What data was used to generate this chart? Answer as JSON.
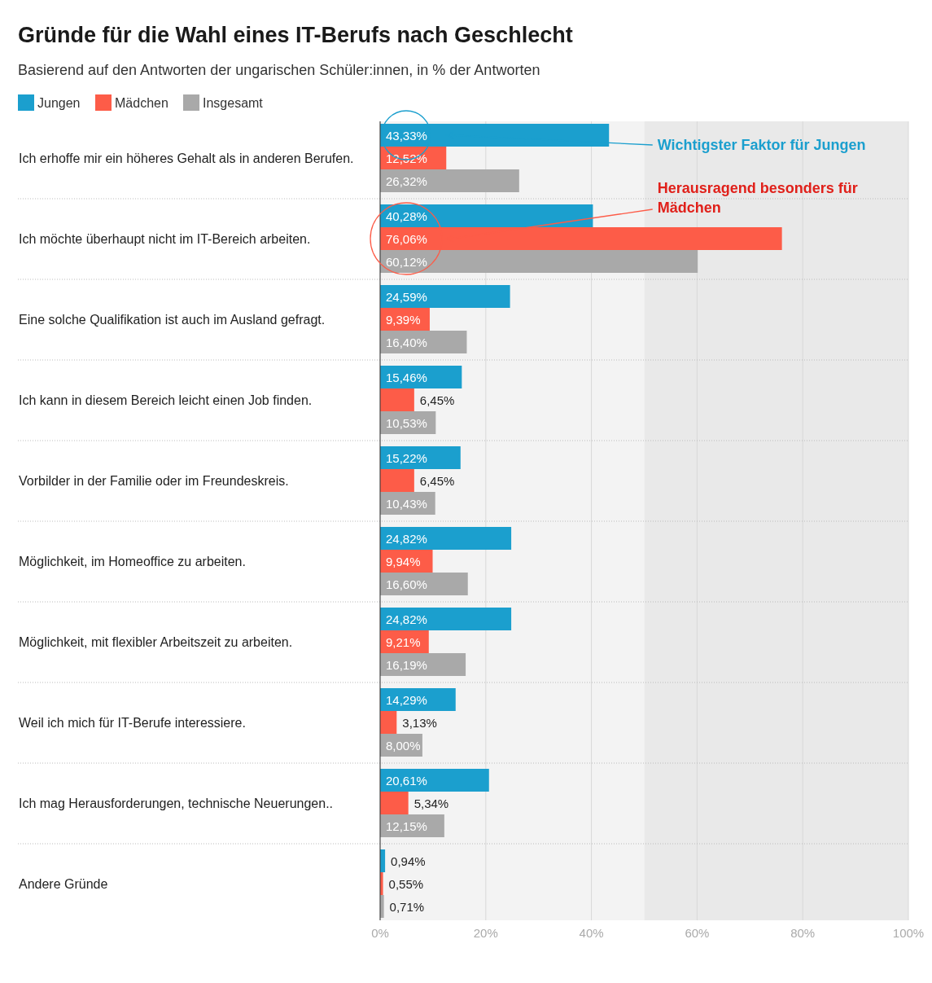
{
  "chart_data": {
    "type": "bar",
    "orientation": "horizontal",
    "title": "Gründe für die Wahl eines IT-Berufs nach Geschlecht",
    "subtitle": "Basierend auf den Antworten der ungarischen Schüler:innen, in % der Antworten",
    "categories": [
      "Ich erhoffe mir ein höheres Gehalt als in anderen Berufen.",
      "Ich möchte überhaupt nicht im IT-Bereich arbeiten.",
      "Eine solche Qualifikation ist auch im Ausland gefragt.",
      "Ich kann in diesem Bereich leicht einen Job finden.",
      " Vorbilder in der Familie oder im Freundeskreis.",
      "Möglichkeit, im Homeoffice zu arbeiten.",
      "Möglichkeit, mit flexibler Arbeitszeit zu arbeiten.",
      "Weil ich mich für IT-Berufe interessiere.",
      "Ich mag Herausforderungen, technische Neuerungen..",
      "Andere Gründe"
    ],
    "series": [
      {
        "name": "Jungen",
        "color": "#1b9fce",
        "values": [
          43.33,
          40.28,
          24.59,
          15.46,
          15.22,
          24.82,
          24.82,
          14.29,
          20.61,
          0.94
        ],
        "value_labels": [
          "43,33%",
          "40,28%",
          "24,59%",
          "15,46%",
          "15,22%",
          "24,82%",
          "24,82%",
          "14,29%",
          "20,61%",
          "0,94%"
        ]
      },
      {
        "name": "Mädchen",
        "color": "#fd5c48",
        "values": [
          12.52,
          76.06,
          9.39,
          6.45,
          6.45,
          9.94,
          9.21,
          3.13,
          5.34,
          0.55
        ],
        "value_labels": [
          "12,52%",
          "76,06%",
          "9,39%",
          "6,45%",
          "6,45%",
          "9,94%",
          "9,21%",
          "3,13%",
          "5,34%",
          "0,55%"
        ]
      },
      {
        "name": "Insgesamt",
        "color": "#a9a9a9",
        "values": [
          26.32,
          60.12,
          16.4,
          10.53,
          10.43,
          16.6,
          16.19,
          8.0,
          12.15,
          0.71
        ],
        "value_labels": [
          "26,32%",
          "60,12%",
          "16,40%",
          "10,53%",
          "10,43%",
          "16,60%",
          "16,19%",
          "8,00%",
          "12,15%",
          "0,71%"
        ]
      }
    ],
    "xlim": [
      0,
      100
    ],
    "xticks": [
      {
        "value": 0,
        "label": "0%"
      },
      {
        "value": 20,
        "label": "20%"
      },
      {
        "value": 40,
        "label": "40%"
      },
      {
        "value": 60,
        "label": "60%"
      },
      {
        "value": 80,
        "label": "80%"
      },
      {
        "value": 100,
        "label": "100%"
      }
    ],
    "grid": "x",
    "legend": "top left",
    "bands": [
      {
        "axis": "x",
        "from": 0,
        "to": 50,
        "color": "#f3f3f3"
      },
      {
        "axis": "x",
        "from": 50,
        "to": 100,
        "color": "#e9e9e9"
      }
    ],
    "annotations": [
      "Wichtigster Faktor für Jungen",
      "Herausragend besonders für Mädchen"
    ]
  }
}
